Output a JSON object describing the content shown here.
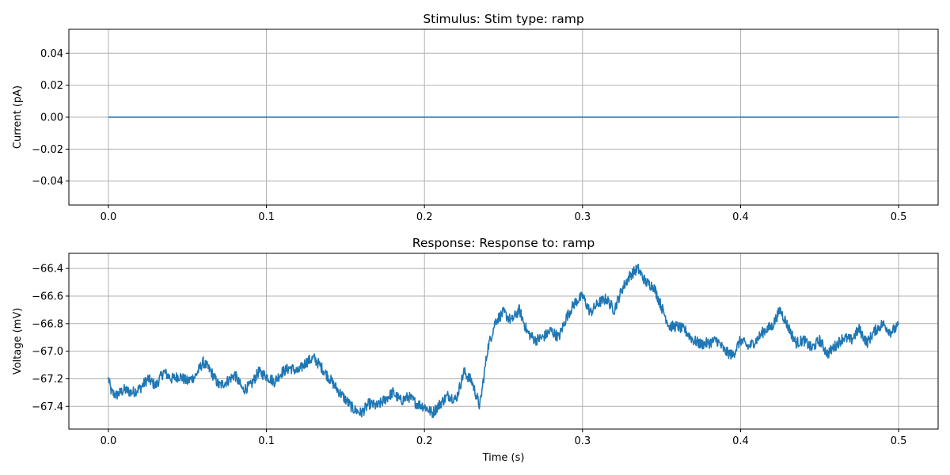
{
  "chart_data": [
    {
      "type": "line",
      "title": "Stimulus: Stim type: ramp",
      "xlabel": "",
      "ylabel": "Current (pA)",
      "xlim": [
        -0.025,
        0.525
      ],
      "ylim": [
        -0.055,
        0.055
      ],
      "grid": true,
      "x_ticks": [
        0.0,
        0.1,
        0.2,
        0.3,
        0.4,
        0.5
      ],
      "x_tick_labels": [
        "0.0",
        "0.1",
        "0.2",
        "0.3",
        "0.4",
        "0.5"
      ],
      "y_ticks": [
        0.04,
        0.02,
        0.0,
        -0.02,
        -0.04
      ],
      "y_tick_labels": [
        "0.04",
        "0.02",
        "0.00",
        "−0.02",
        "−0.04"
      ],
      "series": [
        {
          "name": "stimulus",
          "color": "#1f77b4",
          "x": [
            0.0,
            0.5
          ],
          "y": [
            0.0,
            0.0
          ]
        }
      ]
    },
    {
      "type": "line",
      "title": "Response: Response to: ramp",
      "xlabel": "Time (s)",
      "ylabel": "Voltage (mV)",
      "xlim": [
        -0.025,
        0.525
      ],
      "ylim": [
        -67.565,
        -66.29
      ],
      "grid": true,
      "x_ticks": [
        0.0,
        0.1,
        0.2,
        0.3,
        0.4,
        0.5
      ],
      "x_tick_labels": [
        "0.0",
        "0.1",
        "0.2",
        "0.3",
        "0.4",
        "0.5"
      ],
      "y_ticks": [
        -66.4,
        -66.6,
        -66.8,
        -67.0,
        -67.2,
        -67.4
      ],
      "y_tick_labels": [
        "−66.4",
        "−66.6",
        "−66.8",
        "−67.0",
        "−67.2",
        "−67.4"
      ],
      "series": [
        {
          "name": "response",
          "color": "#1f77b4",
          "noise_band_mV": 0.04,
          "x": [
            0.0,
            0.002,
            0.005,
            0.01,
            0.015,
            0.02,
            0.025,
            0.03,
            0.035,
            0.04,
            0.045,
            0.05,
            0.055,
            0.06,
            0.065,
            0.07,
            0.075,
            0.08,
            0.085,
            0.09,
            0.095,
            0.1,
            0.105,
            0.11,
            0.115,
            0.12,
            0.125,
            0.13,
            0.135,
            0.14,
            0.145,
            0.15,
            0.155,
            0.16,
            0.165,
            0.17,
            0.175,
            0.18,
            0.185,
            0.19,
            0.195,
            0.2,
            0.205,
            0.21,
            0.215,
            0.22,
            0.225,
            0.23,
            0.235,
            0.24,
            0.245,
            0.25,
            0.255,
            0.26,
            0.265,
            0.27,
            0.275,
            0.28,
            0.285,
            0.29,
            0.295,
            0.3,
            0.305,
            0.31,
            0.315,
            0.32,
            0.325,
            0.33,
            0.335,
            0.34,
            0.345,
            0.35,
            0.355,
            0.36,
            0.365,
            0.37,
            0.375,
            0.38,
            0.385,
            0.39,
            0.395,
            0.4,
            0.405,
            0.41,
            0.415,
            0.42,
            0.425,
            0.43,
            0.435,
            0.44,
            0.445,
            0.45,
            0.455,
            0.46,
            0.465,
            0.47,
            0.475,
            0.48,
            0.485,
            0.49,
            0.495,
            0.5
          ],
          "y": [
            -67.2,
            -67.3,
            -67.32,
            -67.28,
            -67.3,
            -67.27,
            -67.2,
            -67.25,
            -67.15,
            -67.2,
            -67.18,
            -67.22,
            -67.18,
            -67.08,
            -67.15,
            -67.25,
            -67.22,
            -67.17,
            -67.28,
            -67.25,
            -67.15,
            -67.18,
            -67.22,
            -67.15,
            -67.12,
            -67.15,
            -67.08,
            -67.05,
            -67.12,
            -67.2,
            -67.28,
            -67.35,
            -67.42,
            -67.45,
            -67.38,
            -67.4,
            -67.35,
            -67.3,
            -67.36,
            -67.33,
            -67.38,
            -67.4,
            -67.45,
            -67.38,
            -67.32,
            -67.35,
            -67.15,
            -67.22,
            -67.4,
            -66.98,
            -66.78,
            -66.72,
            -66.78,
            -66.7,
            -66.86,
            -66.92,
            -66.9,
            -66.85,
            -66.9,
            -66.75,
            -66.65,
            -66.6,
            -66.72,
            -66.65,
            -66.62,
            -66.7,
            -66.55,
            -66.45,
            -66.4,
            -66.5,
            -66.53,
            -66.68,
            -66.82,
            -66.82,
            -66.85,
            -66.92,
            -66.95,
            -66.94,
            -66.92,
            -67.0,
            -67.03,
            -66.92,
            -66.97,
            -66.92,
            -66.85,
            -66.82,
            -66.7,
            -66.82,
            -66.94,
            -66.92,
            -66.98,
            -66.92,
            -67.02,
            -66.96,
            -66.9,
            -66.92,
            -66.84,
            -66.94,
            -66.85,
            -66.8,
            -66.86,
            -66.82
          ]
        }
      ]
    }
  ]
}
